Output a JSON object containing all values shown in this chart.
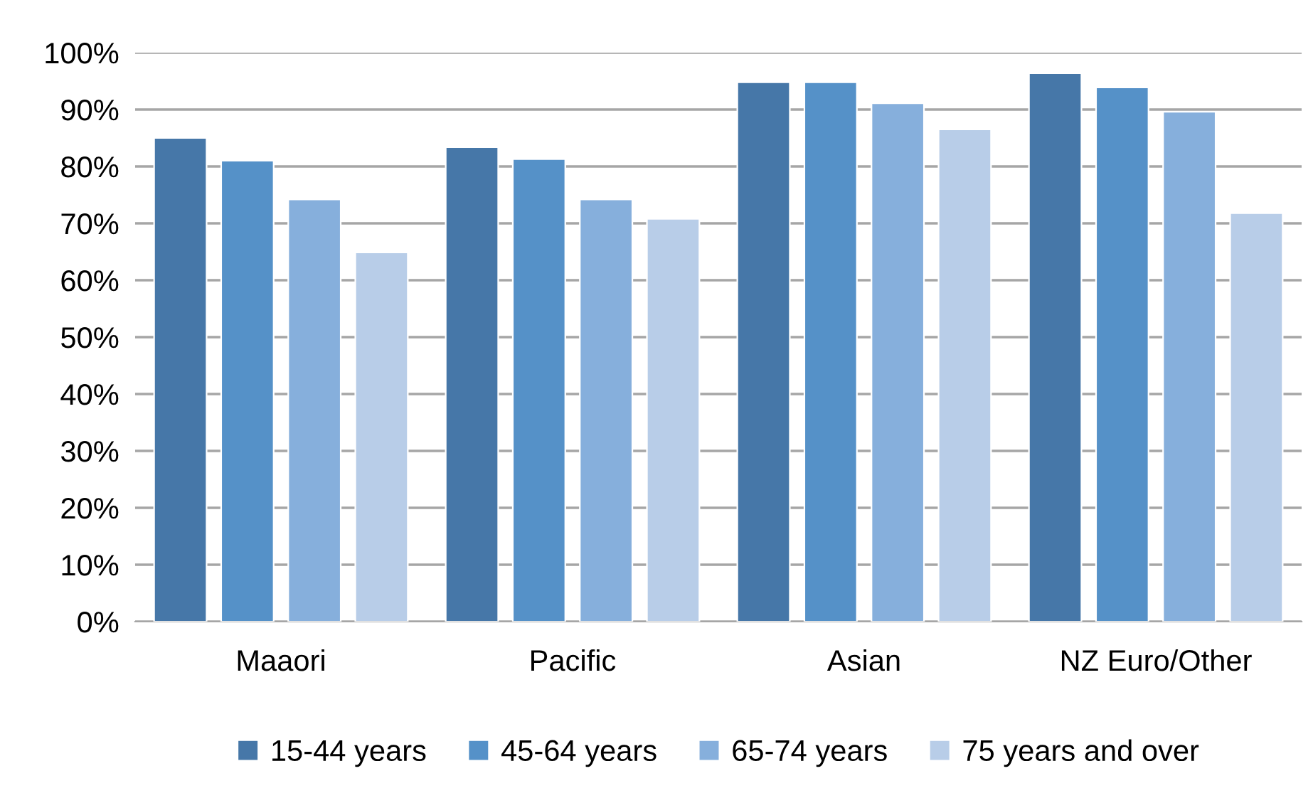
{
  "chart_data": {
    "type": "bar",
    "categories": [
      "Maaori",
      "Pacific",
      "Asian",
      "NZ Euro/Other"
    ],
    "series": [
      {
        "name": "15-44 years",
        "color": "#4677a8",
        "values": [
          85,
          83.4,
          94.8,
          96.4
        ]
      },
      {
        "name": "45-64 years",
        "color": "#5591c8",
        "values": [
          81,
          81.3,
          94.8,
          93.9
        ]
      },
      {
        "name": "65-74 years",
        "color": "#86afdc",
        "values": [
          74.2,
          74.2,
          91.1,
          89.6
        ]
      },
      {
        "name": "75 years and over",
        "color": "#b8cde8",
        "values": [
          64.9,
          70.8,
          86.5,
          71.8
        ]
      }
    ],
    "ylim": [
      0,
      100
    ],
    "yticks": [
      {
        "value": 0,
        "label": "0%"
      },
      {
        "value": 10,
        "label": "10%"
      },
      {
        "value": 20,
        "label": "20%"
      },
      {
        "value": 30,
        "label": "30%"
      },
      {
        "value": 40,
        "label": "40%"
      },
      {
        "value": 50,
        "label": "50%"
      },
      {
        "value": 60,
        "label": "60%"
      },
      {
        "value": 70,
        "label": "70%"
      },
      {
        "value": 80,
        "label": "80%"
      },
      {
        "value": 90,
        "label": "90%"
      },
      {
        "value": 100,
        "label": "100%"
      }
    ],
    "grid": "y",
    "legend": "bottom"
  }
}
